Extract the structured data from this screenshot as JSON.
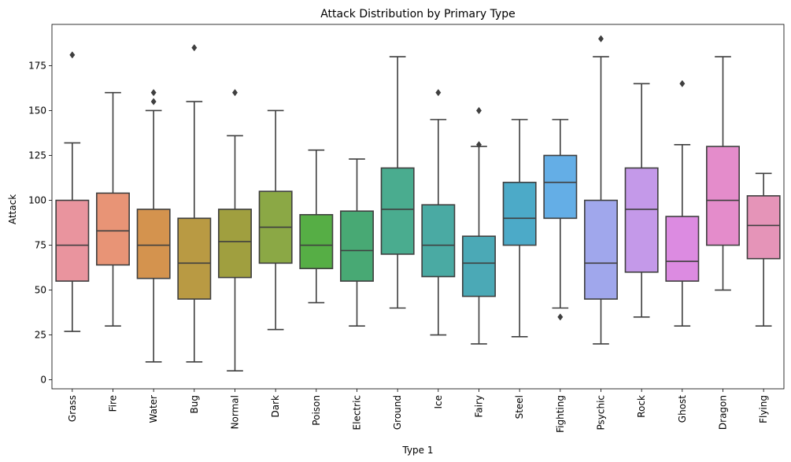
{
  "chart_data": {
    "type": "box",
    "title": "Attack Distribution by Primary Type",
    "xlabel": "Type 1",
    "ylabel": "Attack",
    "ylim": [
      -5,
      198
    ],
    "yticks": [
      0,
      25,
      50,
      75,
      100,
      125,
      150,
      175
    ],
    "grid": false,
    "stroke_color": "#3f3f3f",
    "series": [
      {
        "name": "Grass",
        "color": "#e9949e",
        "whisker_low": 27,
        "q1": 55,
        "median": 75,
        "q3": 100,
        "whisker_high": 132,
        "outliers": [
          181
        ]
      },
      {
        "name": "Fire",
        "color": "#e89476",
        "whisker_low": 30,
        "q1": 64,
        "median": 83,
        "q3": 104,
        "whisker_high": 160,
        "outliers": []
      },
      {
        "name": "Water",
        "color": "#d4934e",
        "whisker_low": 10,
        "q1": 56.5,
        "median": 75,
        "q3": 95,
        "whisker_high": 150,
        "outliers": [
          155,
          160
        ]
      },
      {
        "name": "Bug",
        "color": "#b99a43",
        "whisker_low": 10,
        "q1": 45,
        "median": 65,
        "q3": 90,
        "whisker_high": 155,
        "outliers": [
          185
        ]
      },
      {
        "name": "Normal",
        "color": "#a09f3f",
        "whisker_low": 5,
        "q1": 57,
        "median": 77,
        "q3": 95,
        "whisker_high": 136,
        "outliers": [
          160
        ]
      },
      {
        "name": "Dark",
        "color": "#8ba845",
        "whisker_low": 28,
        "q1": 65,
        "median": 85,
        "q3": 105,
        "whisker_high": 150,
        "outliers": []
      },
      {
        "name": "Poison",
        "color": "#56ae45",
        "whisker_low": 43,
        "q1": 62,
        "median": 75,
        "q3": 92,
        "whisker_high": 128,
        "outliers": []
      },
      {
        "name": "Electric",
        "color": "#48a974",
        "whisker_low": 30,
        "q1": 55,
        "median": 72,
        "q3": 94,
        "whisker_high": 123,
        "outliers": []
      },
      {
        "name": "Ground",
        "color": "#4aac8f",
        "whisker_low": 40,
        "q1": 70,
        "median": 95,
        "q3": 118,
        "whisker_high": 180,
        "outliers": []
      },
      {
        "name": "Ice",
        "color": "#4aaaa3",
        "whisker_low": 25,
        "q1": 57.5,
        "median": 75,
        "q3": 97.5,
        "whisker_high": 145,
        "outliers": [
          160
        ]
      },
      {
        "name": "Fairy",
        "color": "#4ba9b6",
        "whisker_low": 20,
        "q1": 46.5,
        "median": 65,
        "q3": 80,
        "whisker_high": 130,
        "outliers": [
          131,
          150
        ]
      },
      {
        "name": "Steel",
        "color": "#4caac8",
        "whisker_low": 24,
        "q1": 75,
        "median": 90,
        "q3": 110,
        "whisker_high": 145,
        "outliers": []
      },
      {
        "name": "Fighting",
        "color": "#64aee6",
        "whisker_low": 40,
        "q1": 90,
        "median": 110,
        "q3": 125,
        "whisker_high": 145,
        "outliers": [
          35
        ]
      },
      {
        "name": "Psychic",
        "color": "#a0a7ec",
        "whisker_low": 20,
        "q1": 45,
        "median": 65,
        "q3": 100,
        "whisker_high": 180,
        "outliers": [
          190
        ]
      },
      {
        "name": "Rock",
        "color": "#c499e9",
        "whisker_low": 35,
        "q1": 60,
        "median": 95,
        "q3": 118,
        "whisker_high": 165,
        "outliers": []
      },
      {
        "name": "Ghost",
        "color": "#dc8be1",
        "whisker_low": 30,
        "q1": 55,
        "median": 66,
        "q3": 91,
        "whisker_high": 131,
        "outliers": [
          165
        ]
      },
      {
        "name": "Dragon",
        "color": "#e48ccb",
        "whisker_low": 50,
        "q1": 75,
        "median": 100,
        "q3": 130,
        "whisker_high": 180,
        "outliers": []
      },
      {
        "name": "Flying",
        "color": "#e594b8",
        "whisker_low": 30,
        "q1": 67.5,
        "median": 86,
        "q3": 102.5,
        "whisker_high": 115,
        "outliers": []
      }
    ]
  }
}
